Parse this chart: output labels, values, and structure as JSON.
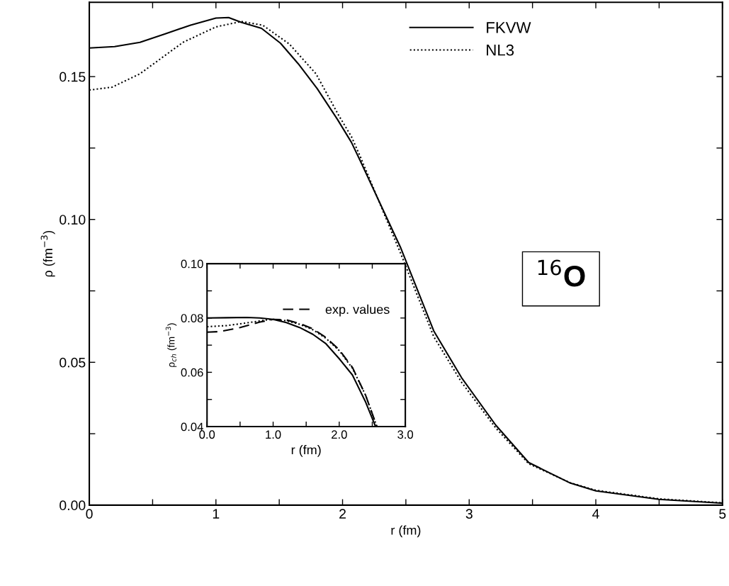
{
  "chart_data": [
    {
      "type": "line",
      "xlabel": "r (fm)",
      "ylabel": "ρ (fm$^{−3}$)",
      "xlim": [
        0,
        5
      ],
      "ylim": [
        0,
        0.176
      ],
      "xticks": [
        0,
        {
          "value": 0.5,
          "label": null
        },
        1,
        {
          "value": 1.5,
          "label": null
        },
        2,
        {
          "value": 2.5,
          "label": null
        },
        3,
        {
          "value": 3.5,
          "label": null
        },
        4,
        {
          "value": 4.5,
          "label": null
        },
        5
      ],
      "yticks": [
        {
          "value": 0,
          "label": "0.00"
        },
        {
          "value": 0.025,
          "label": null
        },
        {
          "value": 0.05,
          "label": "0.05"
        },
        {
          "value": 0.075,
          "label": null
        },
        {
          "value": 0.1,
          "label": "0.10"
        },
        {
          "value": 0.125,
          "label": null
        },
        {
          "value": 0.15,
          "label": "0.15"
        }
      ],
      "grid": false,
      "legend": "top right",
      "annotations": [
        "$^{16}$O"
      ],
      "series": [
        {
          "name": "FKVW",
          "color": "#000000",
          "line_style": "solid",
          "x": [
            0,
            0.2,
            0.4,
            0.6,
            0.8,
            1.0,
            1.1,
            1.2,
            1.36,
            1.51,
            1.65,
            1.8,
            1.96,
            2.07,
            2.14,
            2.46,
            2.72,
            2.94,
            3.21,
            3.47,
            3.8,
            4.0,
            4.5,
            5.0
          ],
          "values": [
            0.16,
            0.1605,
            0.162,
            0.165,
            0.168,
            0.1705,
            0.1707,
            0.169,
            0.1669,
            0.1617,
            0.1545,
            0.1458,
            0.135,
            0.127,
            0.1205,
            0.09,
            0.061,
            0.0446,
            0.028,
            0.0149,
            0.0077,
            0.005,
            0.002,
            0.0007
          ]
        },
        {
          "name": "NL3",
          "color": "#000000",
          "line_style": "dotted",
          "x": [
            0,
            0.18,
            0.4,
            0.74,
            1.0,
            1.2,
            1.37,
            1.58,
            1.79,
            1.97,
            2.07,
            2.14,
            2.46,
            2.72,
            2.94,
            3.21,
            3.47,
            3.8,
            4.0,
            4.5,
            5.0
          ],
          "values": [
            0.1453,
            0.1463,
            0.151,
            0.162,
            0.1674,
            0.1693,
            0.168,
            0.1614,
            0.151,
            0.1364,
            0.129,
            0.122,
            0.088,
            0.059,
            0.043,
            0.027,
            0.0145,
            0.0078,
            0.0052,
            0.0022,
            0.0008
          ]
        }
      ]
    },
    {
      "type": "line",
      "xlabel": "r (fm)",
      "ylabel": "ρ$_{ch}$ (fm$^{−3}$)",
      "xlim": [
        0,
        3
      ],
      "ylim": [
        0.04,
        0.1
      ],
      "xticks": [
        {
          "value": 0,
          "label": "0.0"
        },
        {
          "value": 0.5,
          "label": null
        },
        {
          "value": 1,
          "label": "1.0"
        },
        {
          "value": 1.5,
          "label": null
        },
        {
          "value": 2,
          "label": "2.0"
        },
        {
          "value": 2.5,
          "label": null
        },
        {
          "value": 3,
          "label": "3.0"
        }
      ],
      "yticks": [
        0.04,
        {
          "value": 0.05,
          "label": null
        },
        0.06,
        {
          "value": 0.07,
          "label": null
        },
        0.08,
        {
          "value": 0.09,
          "label": null
        },
        {
          "value": 0.1,
          "label": "0.10"
        }
      ],
      "grid": false,
      "legend": "top right",
      "series": [
        {
          "color": "#000000",
          "line_style": "solid",
          "x": [
            0,
            0.3,
            0.6,
            0.8,
            1.0,
            1.2,
            1.4,
            1.6,
            1.8,
            2.0,
            2.2,
            2.4,
            2.55
          ],
          "values": [
            0.08,
            0.0801,
            0.0802,
            0.08,
            0.0795,
            0.0783,
            0.0765,
            0.074,
            0.0705,
            0.065,
            0.059,
            0.049,
            0.04
          ]
        },
        {
          "color": "#000000",
          "line_style": "dotted",
          "x": [
            0,
            0.3,
            0.6,
            0.9,
            1.0,
            1.2,
            1.4,
            1.6,
            1.8,
            2.0,
            2.2,
            2.4,
            2.57
          ],
          "values": [
            0.0768,
            0.0772,
            0.0782,
            0.0793,
            0.0795,
            0.079,
            0.0777,
            0.0757,
            0.0725,
            0.068,
            0.0615,
            0.0515,
            0.04
          ]
        },
        {
          "name": "exp. values",
          "color": "#000000",
          "line_style": "dashed",
          "x": [
            0,
            0.2,
            0.5,
            0.8,
            1.0,
            1.2,
            1.4,
            1.6,
            1.8,
            2.0,
            2.2,
            2.4,
            2.57
          ],
          "values": [
            0.0748,
            0.075,
            0.0765,
            0.0785,
            0.0795,
            0.0793,
            0.078,
            0.076,
            0.0728,
            0.0683,
            0.0618,
            0.0515,
            0.04
          ]
        }
      ]
    }
  ]
}
